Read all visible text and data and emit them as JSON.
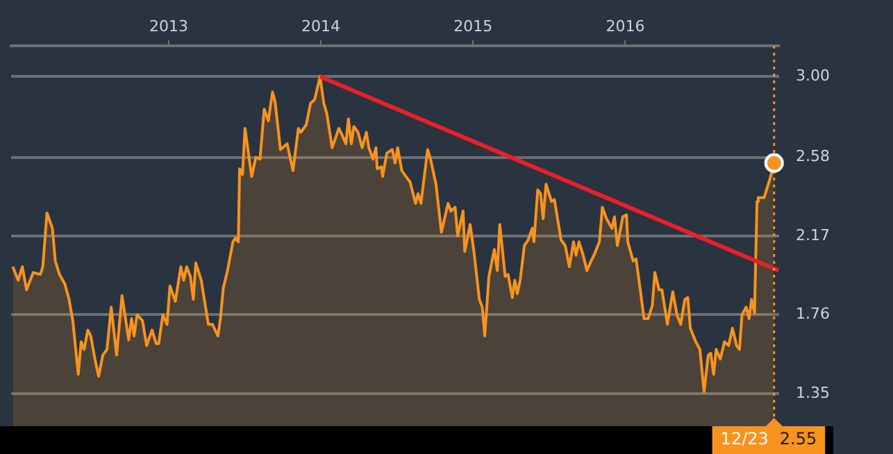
{
  "chart_data": {
    "type": "area",
    "xlim": [
      "2011-12-20",
      "2017-01-04"
    ],
    "xticks": [
      {
        "value": "2013-01-01",
        "label": "2013"
      },
      {
        "value": "2014-01-01",
        "label": "2014"
      },
      {
        "value": "2015-01-01",
        "label": "2015"
      },
      {
        "value": "2016-01-01",
        "label": "2016"
      }
    ],
    "ylim": [
      1.18,
      3.16
    ],
    "yticks": [
      1.35,
      1.76,
      2.17,
      2.58,
      {
        "value": 3,
        "label": "3.00"
      }
    ],
    "grid": "y",
    "legend": false,
    "ref_lines": [
      {
        "axis": "x",
        "value": "2016-12-23",
        "label": "12/23 2.55",
        "color": "#f7931e",
        "line_style": "dotted"
      }
    ],
    "series": [
      {
        "color": "#f7931e",
        "x": [
          "2011-12-24",
          "2012-01-06",
          "2012-01-16",
          "2012-01-26",
          "2012-02-11",
          "2012-02-28",
          "2012-03-05",
          "2012-03-15",
          "2012-03-28",
          "2012-04-04",
          "2012-04-14",
          "2012-04-27",
          "2012-05-07",
          "2012-05-16",
          "2012-05-29",
          "2012-06-05",
          "2012-06-12",
          "2012-06-21",
          "2012-06-28",
          "2012-07-08",
          "2012-07-17",
          "2012-07-27",
          "2012-08-06",
          "2012-08-16",
          "2012-08-29",
          "2012-09-11",
          "2012-09-27",
          "2012-10-04",
          "2012-10-10",
          "2012-10-17",
          "2012-10-30",
          "2012-11-09",
          "2012-11-22",
          "2012-12-02",
          "2012-12-08",
          "2012-12-18",
          "2012-12-28",
          "2013-01-04",
          "2013-01-17",
          "2013-01-30",
          "2013-02-06",
          "2013-02-13",
          "2013-02-22",
          "2013-03-01",
          "2013-03-07",
          "2013-03-20",
          "2013-04-06",
          "2013-04-16",
          "2013-04-29",
          "2013-05-05",
          "2013-05-12",
          "2013-05-22",
          "2013-06-04",
          "2013-06-10",
          "2013-06-17",
          "2013-06-20",
          "2013-06-27",
          "2013-07-03",
          "2013-07-19",
          "2013-07-29",
          "2013-08-08",
          "2013-08-18",
          "2013-08-28",
          "2013-09-07",
          "2013-09-13",
          "2013-09-26",
          "2013-10-12",
          "2013-10-26",
          "2013-11-08",
          "2013-11-14",
          "2013-11-27",
          "2013-12-07",
          "2013-12-17",
          "2013-12-30",
          "2014-01-08",
          "2014-01-15",
          "2014-01-28",
          "2014-02-13",
          "2014-02-20",
          "2014-03-02",
          "2014-03-08",
          "2014-03-15",
          "2014-03-21",
          "2014-03-31",
          "2014-04-10",
          "2014-04-20",
          "2014-04-26",
          "2014-05-06",
          "2014-05-13",
          "2014-05-16",
          "2014-05-26",
          "2014-05-29",
          "2014-06-08",
          "2014-06-21",
          "2014-06-28",
          "2014-07-04",
          "2014-07-14",
          "2014-07-24",
          "2014-08-03",
          "2014-08-16",
          "2014-08-22",
          "2014-08-29",
          "2014-09-14",
          "2014-09-21",
          "2014-10-04",
          "2014-10-17",
          "2014-11-02",
          "2014-11-09",
          "2014-11-19",
          "2014-11-25",
          "2014-12-08",
          "2014-12-12",
          "2014-12-25",
          "2015-01-03",
          "2015-01-16",
          "2015-01-23",
          "2015-01-29",
          "2015-02-08",
          "2015-02-21",
          "2015-02-28",
          "2015-03-06",
          "2015-03-19",
          "2015-03-26",
          "2015-04-05",
          "2015-04-11",
          "2015-04-17",
          "2015-04-24",
          "2015-05-04",
          "2015-05-13",
          "2015-05-23",
          "2015-05-27",
          "2015-06-05",
          "2015-06-12",
          "2015-06-18",
          "2015-06-25",
          "2015-07-08",
          "2015-07-15",
          "2015-07-31",
          "2015-08-10",
          "2015-08-20",
          "2015-08-30",
          "2015-09-05",
          "2015-09-12",
          "2015-09-22",
          "2015-10-01",
          "2015-10-11",
          "2015-10-18",
          "2015-10-31",
          "2015-11-07",
          "2015-11-17",
          "2015-11-30",
          "2015-12-06",
          "2015-12-13",
          "2015-12-26",
          "2016-01-04",
          "2016-01-07",
          "2016-01-20",
          "2016-01-27",
          "2016-02-06",
          "2016-02-15",
          "2016-02-25",
          "2016-03-06",
          "2016-03-12",
          "2016-03-22",
          "2016-03-29",
          "2016-04-11",
          "2016-04-24",
          "2016-05-04",
          "2016-05-13",
          "2016-05-23",
          "2016-05-30",
          "2016-06-05",
          "2016-06-18",
          "2016-06-28",
          "2016-07-08",
          "2016-07-18",
          "2016-07-24",
          "2016-07-31",
          "2016-08-06",
          "2016-08-16",
          "2016-08-26",
          "2016-09-05",
          "2016-09-14",
          "2016-09-24",
          "2016-10-01",
          "2016-10-07",
          "2016-10-17",
          "2016-10-24",
          "2016-10-30",
          "2016-11-06",
          "2016-11-12",
          "2016-11-15",
          "2016-11-29",
          "2016-12-12",
          "2016-12-23"
        ],
        "values": [
          2.01,
          1.94,
          2.01,
          1.89,
          1.98,
          1.97,
          2.01,
          2.29,
          2.21,
          2.04,
          1.97,
          1.92,
          1.84,
          1.73,
          1.45,
          1.62,
          1.58,
          1.68,
          1.65,
          1.53,
          1.44,
          1.55,
          1.58,
          1.8,
          1.55,
          1.86,
          1.63,
          1.74,
          1.65,
          1.76,
          1.73,
          1.6,
          1.68,
          1.61,
          1.61,
          1.76,
          1.71,
          1.91,
          1.83,
          2.01,
          1.94,
          2.01,
          1.96,
          1.84,
          2.03,
          1.94,
          1.71,
          1.71,
          1.65,
          1.74,
          1.9,
          1.99,
          2.14,
          2.16,
          2.14,
          2.52,
          2.49,
          2.73,
          2.48,
          2.58,
          2.57,
          2.83,
          2.77,
          2.92,
          2.87,
          2.62,
          2.65,
          2.51,
          2.73,
          2.71,
          2.75,
          2.86,
          2.88,
          3.0,
          2.86,
          2.81,
          2.63,
          2.73,
          2.7,
          2.65,
          2.78,
          2.65,
          2.74,
          2.71,
          2.63,
          2.71,
          2.63,
          2.57,
          2.63,
          2.52,
          2.53,
          2.48,
          2.6,
          2.62,
          2.55,
          2.63,
          2.51,
          2.48,
          2.45,
          2.34,
          2.39,
          2.34,
          2.62,
          2.57,
          2.44,
          2.19,
          2.34,
          2.3,
          2.32,
          2.17,
          2.3,
          2.09,
          2.23,
          2.09,
          1.84,
          1.8,
          1.65,
          1.96,
          2.1,
          1.99,
          2.23,
          1.96,
          1.97,
          1.85,
          1.94,
          1.87,
          1.94,
          2.12,
          2.15,
          2.21,
          2.14,
          2.41,
          2.39,
          2.26,
          2.44,
          2.35,
          2.36,
          2.15,
          2.12,
          2.01,
          2.14,
          2.07,
          2.14,
          2.07,
          1.99,
          2.04,
          2.07,
          2.14,
          2.32,
          2.26,
          2.21,
          2.27,
          2.12,
          2.27,
          2.28,
          2.14,
          2.04,
          2.05,
          1.89,
          1.74,
          1.74,
          1.81,
          1.98,
          1.89,
          1.89,
          1.71,
          1.88,
          1.76,
          1.71,
          1.84,
          1.85,
          1.69,
          1.62,
          1.58,
          1.36,
          1.55,
          1.56,
          1.45,
          1.58,
          1.53,
          1.62,
          1.6,
          1.69,
          1.6,
          1.58,
          1.76,
          1.8,
          1.74,
          1.84,
          1.77,
          2.35,
          2.37,
          2.37,
          2.46,
          2.55
        ]
      },
      {
        "type": "line",
        "color": "#e8202a",
        "x": [
          "2013-12-30",
          "2017-01-03"
        ],
        "values": [
          3.0,
          1.99
        ]
      }
    ]
  }
}
